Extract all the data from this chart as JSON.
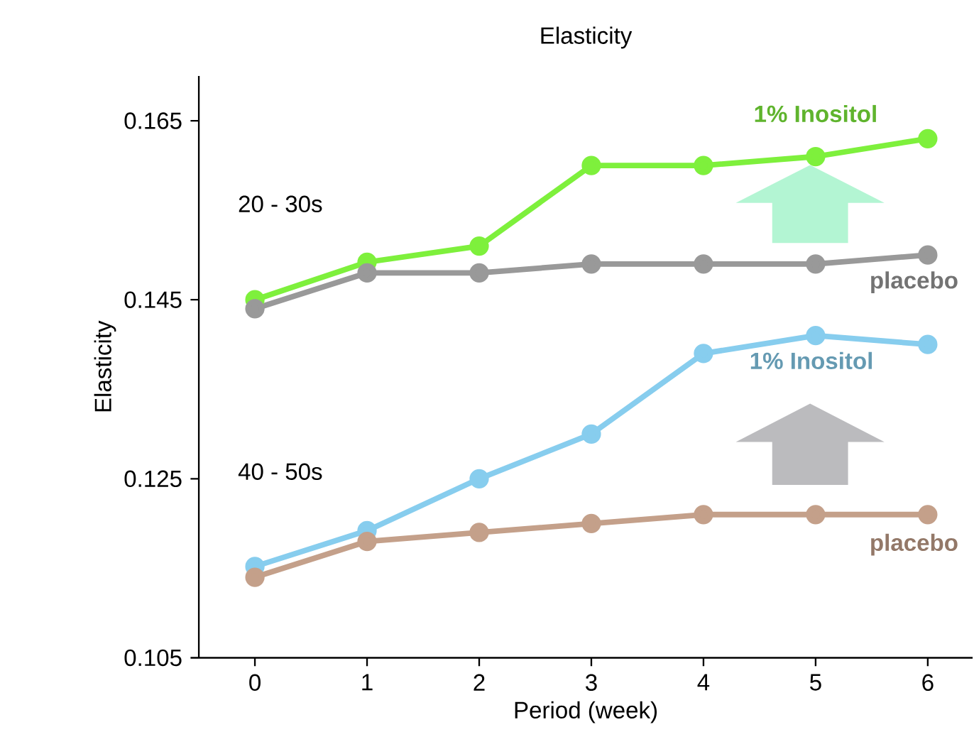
{
  "chart_data": {
    "type": "line",
    "title": "Elasticity",
    "xlabel": "Period (week)",
    "ylabel": "Elasticity",
    "x": [
      0,
      1,
      2,
      3,
      4,
      5,
      6
    ],
    "xlim": [
      -0.5,
      6.4
    ],
    "xticks": [
      0,
      1,
      2,
      3,
      4,
      5,
      6
    ],
    "ylim": [
      0.105,
      0.17
    ],
    "yticks": [
      0.105,
      0.125,
      0.145,
      0.165
    ],
    "marker": "circle",
    "line_style": "solid",
    "series": [
      {
        "name": "1% Inositol",
        "color": "#7ef03c",
        "values": [
          0.145,
          0.1492,
          0.151,
          0.16,
          0.16,
          0.161,
          0.163
        ]
      },
      {
        "name": "placebo",
        "color": "#999999",
        "values": [
          0.144,
          0.148,
          0.148,
          0.149,
          0.149,
          0.149,
          0.15
        ]
      },
      {
        "name": "1% Inositol",
        "color": "#87cdee",
        "values": [
          0.1152,
          0.1192,
          0.125,
          0.13,
          0.139,
          0.141,
          0.14
        ]
      },
      {
        "name": "placebo",
        "color": "#c4a08a",
        "values": [
          0.114,
          0.118,
          0.119,
          0.12,
          0.121,
          0.121,
          0.121
        ]
      }
    ],
    "annotations": [
      "20 - 30s",
      "40 - 50s"
    ]
  }
}
